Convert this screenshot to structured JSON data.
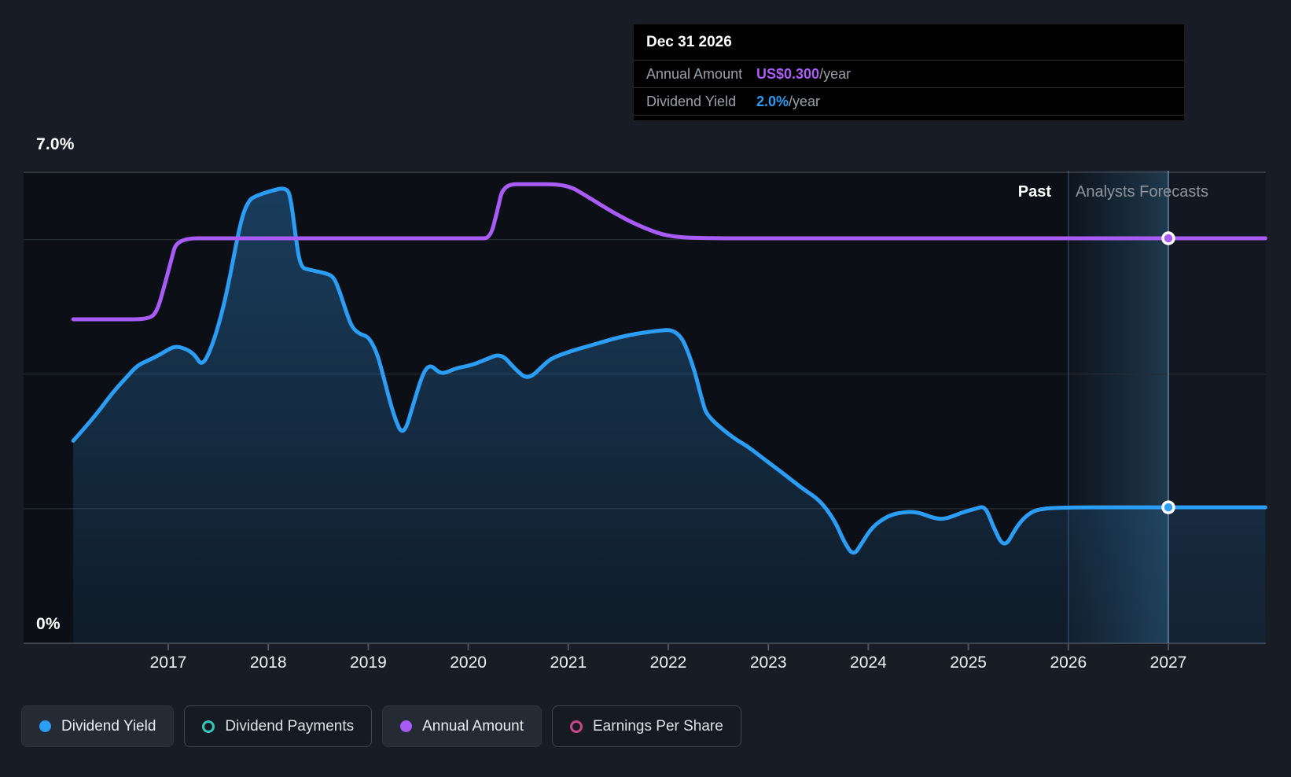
{
  "tooltip": {
    "title": "Dec 31 2026",
    "rows": [
      {
        "label": "Annual Amount",
        "value": "US$0.300",
        "suffix": "/year",
        "color": "#ab5ef6"
      },
      {
        "label": "Dividend Yield",
        "value": "2.0%",
        "suffix": "/year",
        "color": "#2b9df4"
      }
    ]
  },
  "axis": {
    "y_top_label": "7.0%",
    "y_bottom_label": "0%"
  },
  "zones": {
    "past_label": "Past",
    "forecast_label": "Analysts Forecasts"
  },
  "legend": [
    {
      "label": "Dividend Yield",
      "marker": "filled",
      "color": "#2b9df4",
      "active": true
    },
    {
      "label": "Dividend Payments",
      "marker": "ring",
      "color": "#35c8b5",
      "active": false
    },
    {
      "label": "Annual Amount",
      "marker": "filled",
      "color": "#a85cf5",
      "active": true
    },
    {
      "label": "Earnings Per Share",
      "marker": "ring",
      "color": "#c9488a",
      "active": false
    }
  ],
  "chart_data": {
    "type": "line",
    "title": "Dividend yield and payments history with analysts forecasts",
    "x_ticks": [
      2017,
      2018,
      2019,
      2020,
      2021,
      2022,
      2023,
      2024,
      2025,
      2026,
      2027
    ],
    "x_range": [
      2016.05,
      2027.97
    ],
    "ylim_percent": [
      0,
      7.0
    ],
    "y_gridlines_percent": [
      0,
      2,
      4,
      6
    ],
    "y_top_boundary_percent": 7.0,
    "grid_on": true,
    "legend_position": "bottom",
    "forecast_band_x": [
      2026.0,
      2027.0
    ],
    "crosshair_x": 2027.0,
    "series": [
      {
        "name": "Dividend Yield",
        "unit": "percent_yield",
        "axis": "percent",
        "color": "#2b9df4",
        "area": true,
        "marker_at": [
          2027.0,
          2.02
        ],
        "points": [
          [
            2016.05,
            3.01
          ],
          [
            2016.25,
            3.34
          ],
          [
            2016.44,
            3.72
          ],
          [
            2016.58,
            3.95
          ],
          [
            2016.69,
            4.13
          ],
          [
            2016.81,
            4.21
          ],
          [
            2016.93,
            4.3
          ],
          [
            2017.06,
            4.42
          ],
          [
            2017.17,
            4.38
          ],
          [
            2017.26,
            4.3
          ],
          [
            2017.34,
            4.11
          ],
          [
            2017.44,
            4.42
          ],
          [
            2017.54,
            4.92
          ],
          [
            2017.62,
            5.47
          ],
          [
            2017.69,
            6.02
          ],
          [
            2017.75,
            6.4
          ],
          [
            2017.81,
            6.58
          ],
          [
            2017.85,
            6.63
          ],
          [
            2018.01,
            6.72
          ],
          [
            2018.19,
            6.78
          ],
          [
            2018.23,
            6.56
          ],
          [
            2018.27,
            6.09
          ],
          [
            2018.32,
            5.59
          ],
          [
            2018.41,
            5.55
          ],
          [
            2018.6,
            5.49
          ],
          [
            2018.66,
            5.43
          ],
          [
            2018.72,
            5.2
          ],
          [
            2018.79,
            4.88
          ],
          [
            2018.84,
            4.69
          ],
          [
            2018.92,
            4.59
          ],
          [
            2019.0,
            4.56
          ],
          [
            2019.08,
            4.34
          ],
          [
            2019.13,
            4.09
          ],
          [
            2019.25,
            3.4
          ],
          [
            2019.35,
            3.05
          ],
          [
            2019.46,
            3.6
          ],
          [
            2019.55,
            4.03
          ],
          [
            2019.62,
            4.14
          ],
          [
            2019.7,
            4.03
          ],
          [
            2019.76,
            4.01
          ],
          [
            2019.88,
            4.09
          ],
          [
            2020.03,
            4.13
          ],
          [
            2020.18,
            4.22
          ],
          [
            2020.33,
            4.31
          ],
          [
            2020.47,
            4.07
          ],
          [
            2020.6,
            3.91
          ],
          [
            2020.77,
            4.16
          ],
          [
            2020.84,
            4.24
          ],
          [
            2021.02,
            4.34
          ],
          [
            2021.21,
            4.42
          ],
          [
            2021.53,
            4.56
          ],
          [
            2021.84,
            4.64
          ],
          [
            2022.1,
            4.67
          ],
          [
            2022.24,
            4.18
          ],
          [
            2022.34,
            3.6
          ],
          [
            2022.39,
            3.37
          ],
          [
            2022.65,
            3.05
          ],
          [
            2022.79,
            2.93
          ],
          [
            2022.92,
            2.78
          ],
          [
            2023.1,
            2.58
          ],
          [
            2023.23,
            2.43
          ],
          [
            2023.36,
            2.28
          ],
          [
            2023.52,
            2.12
          ],
          [
            2023.67,
            1.81
          ],
          [
            2023.75,
            1.53
          ],
          [
            2023.85,
            1.29
          ],
          [
            2023.94,
            1.5
          ],
          [
            2024.04,
            1.73
          ],
          [
            2024.18,
            1.88
          ],
          [
            2024.3,
            1.94
          ],
          [
            2024.48,
            1.96
          ],
          [
            2024.67,
            1.85
          ],
          [
            2024.78,
            1.85
          ],
          [
            2024.93,
            1.94
          ],
          [
            2025.07,
            2.0
          ],
          [
            2025.17,
            2.04
          ],
          [
            2025.25,
            1.73
          ],
          [
            2025.36,
            1.4
          ],
          [
            2025.48,
            1.73
          ],
          [
            2025.58,
            1.9
          ],
          [
            2025.7,
            2.0
          ],
          [
            2026.0,
            2.02
          ],
          [
            2026.5,
            2.02
          ],
          [
            2027.0,
            2.02
          ],
          [
            2027.5,
            2.02
          ],
          [
            2027.97,
            2.02
          ]
        ]
      },
      {
        "name": "Annual Amount",
        "unit": "usd_per_year",
        "axis": "amount",
        "color": "#a85cf5",
        "area": false,
        "marker_at": [
          2027.0,
          0.3
        ],
        "points": [
          [
            2016.05,
            0.24
          ],
          [
            2016.5,
            0.24
          ],
          [
            2016.81,
            0.24
          ],
          [
            2016.89,
            0.246
          ],
          [
            2016.97,
            0.267
          ],
          [
            2017.03,
            0.284
          ],
          [
            2017.09,
            0.3
          ],
          [
            2017.5,
            0.3
          ],
          [
            2018.0,
            0.3
          ],
          [
            2019.0,
            0.3
          ],
          [
            2020.1,
            0.3
          ],
          [
            2020.22,
            0.3
          ],
          [
            2020.29,
            0.32
          ],
          [
            2020.35,
            0.34
          ],
          [
            2020.6,
            0.34
          ],
          [
            2020.98,
            0.34
          ],
          [
            2021.19,
            0.331
          ],
          [
            2021.45,
            0.319
          ],
          [
            2021.71,
            0.309
          ],
          [
            2022.0,
            0.301
          ],
          [
            2022.4,
            0.3
          ],
          [
            2023.0,
            0.3
          ],
          [
            2024.0,
            0.3
          ],
          [
            2025.0,
            0.3
          ],
          [
            2026.0,
            0.3
          ],
          [
            2027.0,
            0.3
          ],
          [
            2027.97,
            0.3
          ]
        ]
      }
    ]
  }
}
